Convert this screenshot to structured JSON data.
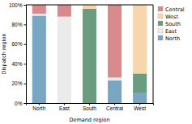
{
  "chart_data": {
    "type": "bar",
    "stacked": true,
    "categories": [
      "North",
      "East",
      "South",
      "Central",
      "West"
    ],
    "x_label": "Demand region",
    "y_label": "Dispatch region",
    "series": [
      {
        "name": "North",
        "color": "#79a7c3",
        "values": [
          89,
          0,
          0,
          23,
          10
        ]
      },
      {
        "name": "East",
        "color": "#ebebeb",
        "values": [
          2,
          88,
          0,
          3,
          0
        ]
      },
      {
        "name": "South",
        "color": "#6c9c80",
        "values": [
          0,
          0,
          96,
          0,
          20
        ]
      },
      {
        "name": "West",
        "color": "#f7d6ad",
        "values": [
          0,
          0,
          4,
          0,
          70
        ]
      },
      {
        "name": "Central",
        "color": "#d98a8c",
        "values": [
          9,
          12,
          0,
          74,
          0
        ]
      }
    ],
    "ylim": [
      0,
      100
    ],
    "yticks": [
      {
        "value": 0,
        "label": "0%"
      },
      {
        "value": 20,
        "label": "20%"
      },
      {
        "value": 40,
        "label": "40%"
      },
      {
        "value": 60,
        "label": "60%"
      },
      {
        "value": 80,
        "label": "80%"
      },
      {
        "value": 100,
        "label": "100%"
      }
    ],
    "legend": "upper right",
    "grid": false
  }
}
